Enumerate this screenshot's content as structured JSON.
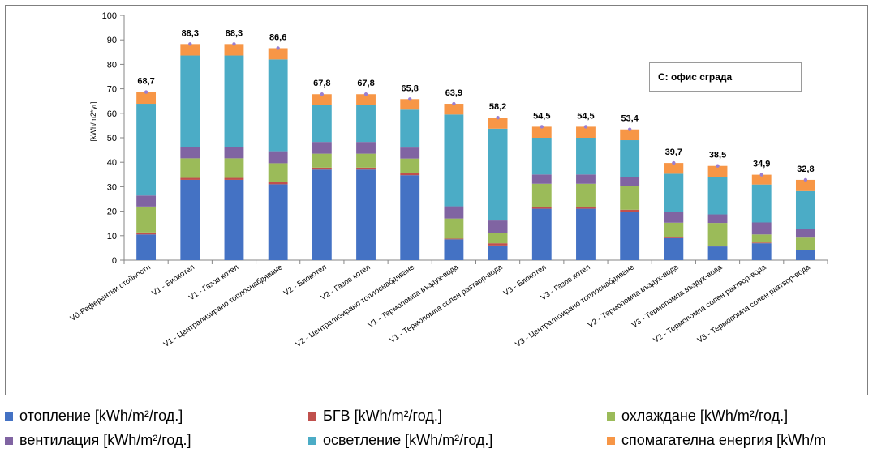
{
  "chart_data": {
    "type": "bar",
    "stacked": true,
    "ylabel": "[kWh/m2*yr]",
    "ylim": [
      0,
      100
    ],
    "yticks": [
      0,
      10,
      20,
      30,
      40,
      50,
      60,
      70,
      80,
      90,
      100
    ],
    "annotation": "С: офис сграда",
    "categories": [
      "V0-Референтни стойности",
      "V1 - Биокотел",
      "V1 - Газов котел",
      "V1 - Централизирано топлоснабдяване",
      "V2 - Биокотел",
      "V2 - Газов котел",
      "V2 - Централизирано топлоснабдяване",
      "V1 - Термопомпа въздух-вода",
      "V1 - Термопомпа солен разтвор-вода",
      "V3 - Биокотел",
      "V3 - Газов котел",
      "V3 - Централизирано топлоснабдяване",
      "V2 - Термопомпа въздух-вода",
      "V3 - Термопомпа въздух-вода",
      "V2 - Термопомпа солен разтвор-вода",
      "V3 - Термопомпа солен разтвор-вода"
    ],
    "totals": [
      "68,7",
      "88,3",
      "88,3",
      "86,6",
      "67,8",
      "67,8",
      "65,8",
      "63,9",
      "58,2",
      "54,5",
      "54,5",
      "53,4",
      "39,7",
      "38,5",
      "34,9",
      "32,8"
    ],
    "series": [
      {
        "name": "отопление [kWh/m²/год.]",
        "color": "#4472c4",
        "values": [
          10.5,
          32.8,
          32.8,
          31.0,
          37.0,
          37.0,
          34.7,
          8.5,
          6.0,
          21.0,
          21.0,
          19.8,
          9.0,
          5.6,
          6.9,
          4.0
        ]
      },
      {
        "name": "БГВ [kWh/m²/год.]",
        "color": "#c0504d",
        "values": [
          0.8,
          0.8,
          0.8,
          0.8,
          0.8,
          0.8,
          0.8,
          0.3,
          0.9,
          0.8,
          0.8,
          0.8,
          0.3,
          0.3,
          0.3,
          0.2
        ]
      },
      {
        "name": "охлаждане [kWh/m²/год.]",
        "color": "#9bbb59",
        "values": [
          10.6,
          8.0,
          8.0,
          7.8,
          5.7,
          5.7,
          6.0,
          8.2,
          4.3,
          9.4,
          9.4,
          9.6,
          6.0,
          9.3,
          3.3,
          5.0
        ]
      },
      {
        "name": "вентилация [kWh/m²/год.]",
        "color": "#8064a2",
        "values": [
          4.5,
          4.5,
          4.5,
          4.9,
          4.8,
          4.8,
          4.5,
          5.0,
          5.0,
          3.8,
          3.8,
          3.8,
          4.5,
          3.5,
          4.9,
          3.5
        ]
      },
      {
        "name": "осветление [kWh/m²/год.]",
        "color": "#4bacc6",
        "values": [
          37.5,
          37.5,
          37.5,
          37.5,
          15.0,
          15.0,
          15.5,
          37.5,
          37.5,
          15.0,
          15.0,
          15.0,
          15.5,
          15.2,
          15.5,
          15.5
        ]
      },
      {
        "name": "спомагателна енергия [kWh/m",
        "color": "#f79646",
        "values": [
          4.8,
          4.7,
          4.7,
          4.6,
          4.5,
          4.5,
          4.3,
          4.4,
          4.5,
          4.5,
          4.5,
          4.4,
          4.4,
          4.6,
          4.0,
          4.6
        ]
      }
    ],
    "legend": {
      "position": "bottom"
    }
  }
}
